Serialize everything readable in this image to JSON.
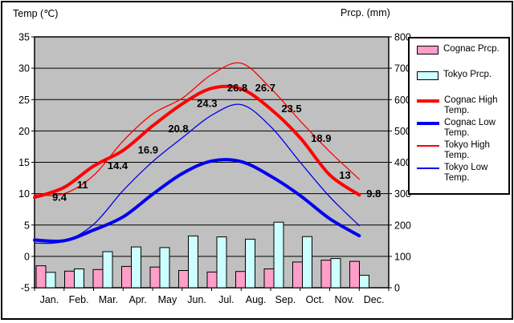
{
  "chart_data": {
    "type": "combo-bar-line",
    "title": "",
    "categories": [
      "Jan.",
      "Feb.",
      "Mar.",
      "Apr.",
      "May",
      "Jun.",
      "Jul.",
      "Aug.",
      "Sep.",
      "Oct.",
      "Nov.",
      "Dec."
    ],
    "temp_axis": {
      "title": "Temp (℃)",
      "min": -5,
      "max": 35,
      "ticks": [
        35,
        30,
        25,
        20,
        15,
        10,
        5,
        0,
        -5
      ]
    },
    "prcp_axis": {
      "title": "Prcp. (mm)",
      "min": 0,
      "max": 800,
      "ticks": [
        800,
        700,
        600,
        500,
        400,
        300,
        200,
        100,
        0
      ]
    },
    "grid": true,
    "plot_bg": "#c0c0c0",
    "legend_position": "right",
    "series": [
      {
        "name": "Cognac Prcp.",
        "type": "bar",
        "color": "#ff9ec9",
        "values": [
          70,
          53,
          58,
          68,
          66,
          55,
          50,
          52,
          60,
          82,
          88,
          84
        ]
      },
      {
        "name": "Tokyo Prcp.",
        "type": "bar",
        "color": "#ccffff",
        "values": [
          49,
          60,
          115,
          130,
          128,
          165,
          162,
          155,
          209,
          163,
          93,
          40
        ]
      },
      {
        "name": "Cognac High Temp.",
        "type": "line",
        "color": "#ff0000",
        "thickness": 4,
        "labeled": true,
        "values": [
          9.4,
          11,
          14.4,
          16.9,
          20.8,
          24.3,
          26.8,
          26.7,
          23.5,
          18.9,
          13,
          9.8
        ]
      },
      {
        "name": "Cognac Low Temp.",
        "type": "line",
        "color": "#0000ee",
        "thickness": 4,
        "values": [
          2.6,
          2.5,
          4.2,
          6.3,
          9.9,
          13.2,
          15.2,
          15.1,
          12.8,
          9.7,
          6.0,
          3.3
        ]
      },
      {
        "name": "Tokyo High Temp.",
        "type": "line",
        "color": "#ff0000",
        "thickness": 1.3,
        "values": [
          9.8,
          10,
          12.9,
          18.4,
          22.7,
          25.2,
          29,
          30.8,
          26.8,
          21.6,
          16.7,
          12.3
        ]
      },
      {
        "name": "Tokyo Low Temp.",
        "type": "line",
        "color": "#0000ee",
        "thickness": 1.3,
        "values": [
          2.1,
          2.4,
          5.1,
          10.5,
          15.1,
          18.9,
          22.5,
          24.2,
          20.7,
          15,
          9.5,
          4.9
        ]
      }
    ],
    "point_labels": [
      "9.4",
      "11",
      "14.4",
      "16.9",
      "20.8",
      "24.3",
      "26.8",
      "26.7",
      "23.5",
      "18.9",
      "13",
      "9.8"
    ]
  }
}
